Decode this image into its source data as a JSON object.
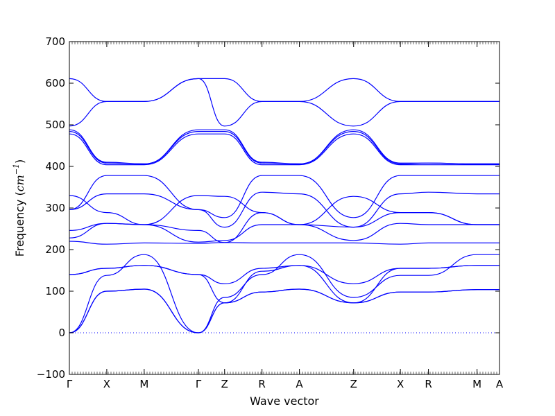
{
  "chart_data": {
    "type": "line",
    "title": "",
    "xlabel": "Wave vector",
    "ylabel": {
      "prefix": "Frequency (",
      "unit": "cm",
      "exponent": "−1",
      "suffix": ")"
    },
    "ylim": [
      -100,
      700
    ],
    "yticks": [
      -100,
      0,
      100,
      200,
      300,
      400,
      500,
      600,
      700
    ],
    "grid": false,
    "legend": "none",
    "line_color": "#0000ff",
    "xlim": [
      0,
      11.5
    ],
    "high_symmetry_points": [
      {
        "label": "Γ",
        "x": 0
      },
      {
        "label": "X",
        "x": 1
      },
      {
        "label": "M",
        "x": 2
      },
      {
        "label": "Γ",
        "x": 3.45
      },
      {
        "label": "Z",
        "x": 4.15
      },
      {
        "label": "R",
        "x": 5.15
      },
      {
        "label": "A",
        "x": 6.15
      },
      {
        "label": "Z",
        "x": 7.6
      },
      {
        "label": "X",
        "x": 8.85
      },
      {
        "label": "R",
        "x": 9.6
      },
      {
        "label": "M",
        "x": 10.9
      },
      {
        "label": "A",
        "x": 11.5
      }
    ],
    "zero_line": {
      "y": 0,
      "style": "dotted"
    },
    "series": [
      {
        "points": [
          [
            0,
            0
          ],
          [
            1,
            100
          ],
          [
            2,
            105
          ],
          [
            3.45,
            0
          ],
          [
            4.15,
            72
          ],
          [
            5.15,
            98
          ],
          [
            6.15,
            105
          ],
          [
            7.6,
            72
          ],
          [
            8.85,
            98
          ],
          [
            9.6,
            98
          ],
          [
            10.9,
            104
          ],
          [
            11.5,
            104
          ]
        ]
      },
      {
        "points": [
          [
            0,
            0
          ],
          [
            1,
            100
          ],
          [
            2,
            105
          ],
          [
            3.45,
            0
          ],
          [
            4.15,
            72
          ],
          [
            5.15,
            98
          ],
          [
            6.15,
            105
          ],
          [
            7.6,
            72
          ],
          [
            8.85,
            98
          ],
          [
            9.6,
            98
          ],
          [
            10.9,
            104
          ],
          [
            11.5,
            104
          ]
        ]
      },
      {
        "points": [
          [
            0,
            0
          ],
          [
            1,
            138
          ],
          [
            2,
            188
          ],
          [
            3.45,
            0
          ],
          [
            4.15,
            85
          ],
          [
            5.15,
            140
          ],
          [
            6.15,
            188
          ],
          [
            7.6,
            85
          ],
          [
            8.85,
            138
          ],
          [
            9.6,
            138
          ],
          [
            10.9,
            188
          ],
          [
            11.5,
            188
          ]
        ]
      },
      {
        "points": [
          [
            0,
            140
          ],
          [
            1,
            155
          ],
          [
            2,
            162
          ],
          [
            3.45,
            140
          ],
          [
            4.15,
            118
          ],
          [
            5.15,
            155
          ],
          [
            6.15,
            162
          ],
          [
            7.6,
            118
          ],
          [
            8.85,
            155
          ],
          [
            9.6,
            155
          ],
          [
            10.9,
            162
          ],
          [
            11.5,
            162
          ]
        ]
      },
      {
        "points": [
          [
            0,
            140
          ],
          [
            1,
            155
          ],
          [
            2,
            162
          ],
          [
            3.45,
            140
          ],
          [
            4.15,
            72
          ],
          [
            5.15,
            148
          ],
          [
            6.15,
            162
          ],
          [
            7.6,
            72
          ],
          [
            8.85,
            155
          ],
          [
            9.6,
            155
          ],
          [
            10.9,
            162
          ],
          [
            11.5,
            162
          ]
        ]
      },
      {
        "points": [
          [
            0,
            220
          ],
          [
            1,
            213
          ],
          [
            2,
            216
          ],
          [
            3.45,
            215
          ],
          [
            4.15,
            217
          ],
          [
            5.15,
            216
          ],
          [
            6.15,
            216
          ],
          [
            7.6,
            216
          ],
          [
            8.85,
            213
          ],
          [
            9.6,
            216
          ],
          [
            10.9,
            216
          ],
          [
            11.5,
            216
          ]
        ]
      },
      {
        "points": [
          [
            0,
            228
          ],
          [
            1,
            263
          ],
          [
            2,
            260
          ],
          [
            3.45,
            218
          ],
          [
            4.15,
            222
          ],
          [
            5.15,
            260
          ],
          [
            6.15,
            260
          ],
          [
            7.6,
            222
          ],
          [
            8.85,
            263
          ],
          [
            9.6,
            260
          ],
          [
            10.9,
            260
          ],
          [
            11.5,
            260
          ]
        ]
      },
      {
        "points": [
          [
            0,
            246
          ],
          [
            1,
            263
          ],
          [
            2,
            260
          ],
          [
            3.45,
            246
          ],
          [
            4.15,
            217
          ],
          [
            5.15,
            289
          ],
          [
            6.15,
            260
          ],
          [
            7.6,
            254
          ],
          [
            8.85,
            289
          ],
          [
            9.6,
            289
          ],
          [
            10.9,
            260
          ],
          [
            11.5,
            260
          ]
        ]
      },
      {
        "points": [
          [
            0,
            296
          ],
          [
            1,
            334
          ],
          [
            2,
            334
          ],
          [
            3.45,
            296
          ],
          [
            4.15,
            254
          ],
          [
            5.15,
            338
          ],
          [
            6.15,
            334
          ],
          [
            7.6,
            254
          ],
          [
            8.85,
            334
          ],
          [
            9.6,
            338
          ],
          [
            10.9,
            334
          ],
          [
            11.5,
            334
          ]
        ]
      },
      {
        "points": [
          [
            0,
            296
          ],
          [
            1,
            378
          ],
          [
            2,
            378
          ],
          [
            3.45,
            296
          ],
          [
            4.15,
            277
          ],
          [
            5.15,
            378
          ],
          [
            6.15,
            378
          ],
          [
            7.6,
            277
          ],
          [
            8.85,
            378
          ],
          [
            9.6,
            378
          ],
          [
            10.9,
            378
          ],
          [
            11.5,
            378
          ]
        ]
      },
      {
        "points": [
          [
            0,
            330
          ],
          [
            1,
            289
          ],
          [
            2,
            260
          ],
          [
            3.45,
            330
          ],
          [
            4.15,
            328
          ],
          [
            5.15,
            289
          ],
          [
            6.15,
            260
          ],
          [
            7.6,
            328
          ],
          [
            8.85,
            289
          ],
          [
            9.6,
            289
          ],
          [
            10.9,
            260
          ],
          [
            11.5,
            260
          ]
        ]
      },
      {
        "points": [
          [
            0,
            478
          ],
          [
            1,
            404
          ],
          [
            2,
            404
          ],
          [
            3.45,
            478
          ],
          [
            4.15,
            478
          ],
          [
            5.15,
            404
          ],
          [
            6.15,
            404
          ],
          [
            7.6,
            478
          ],
          [
            8.85,
            404
          ],
          [
            9.6,
            404
          ],
          [
            10.9,
            404
          ],
          [
            11.5,
            404
          ]
        ]
      },
      {
        "points": [
          [
            0,
            484
          ],
          [
            1,
            408
          ],
          [
            2,
            406
          ],
          [
            3.45,
            484
          ],
          [
            4.15,
            484
          ],
          [
            5.15,
            408
          ],
          [
            6.15,
            406
          ],
          [
            7.6,
            484
          ],
          [
            8.85,
            406
          ],
          [
            9.6,
            408
          ],
          [
            10.9,
            406
          ],
          [
            11.5,
            406
          ]
        ]
      },
      {
        "points": [
          [
            0,
            488
          ],
          [
            1,
            410
          ],
          [
            2,
            406
          ],
          [
            3.45,
            488
          ],
          [
            4.15,
            488
          ],
          [
            5.15,
            410
          ],
          [
            6.15,
            406
          ],
          [
            7.6,
            488
          ],
          [
            8.85,
            408
          ],
          [
            9.6,
            408
          ],
          [
            10.9,
            406
          ],
          [
            11.5,
            406
          ]
        ]
      },
      {
        "points": [
          [
            0,
            497
          ],
          [
            1,
            556
          ],
          [
            2,
            556
          ],
          [
            3.45,
            611
          ],
          [
            4.15,
            611
          ],
          [
            5.15,
            556
          ],
          [
            6.15,
            556
          ],
          [
            7.6,
            497
          ],
          [
            8.85,
            556
          ],
          [
            9.6,
            556
          ],
          [
            10.9,
            556
          ],
          [
            11.5,
            556
          ]
        ]
      },
      {
        "points": [
          [
            0,
            611
          ],
          [
            1,
            556
          ],
          [
            2,
            556
          ],
          [
            3.45,
            611
          ],
          [
            4.15,
            497
          ],
          [
            5.15,
            556
          ],
          [
            6.15,
            556
          ],
          [
            7.6,
            611
          ],
          [
            8.85,
            556
          ],
          [
            9.6,
            556
          ],
          [
            10.9,
            556
          ],
          [
            11.5,
            556
          ]
        ]
      }
    ]
  }
}
